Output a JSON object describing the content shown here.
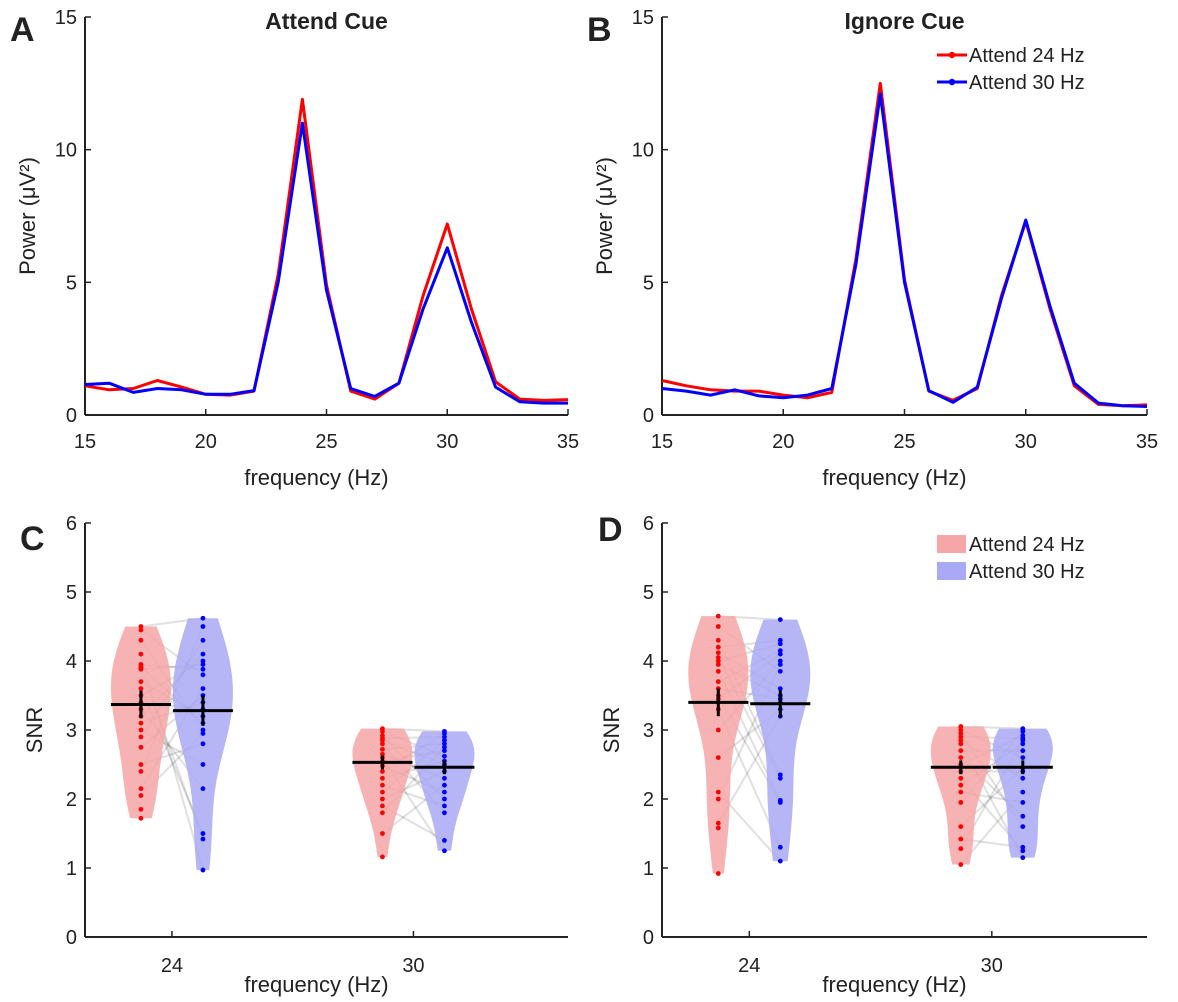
{
  "chart_data": [
    {
      "panel": "A",
      "type": "line",
      "title": "Attend Cue",
      "xlabel": "frequency (Hz)",
      "ylabel": "Power (μV²)",
      "xlim": [
        15,
        35
      ],
      "ylim": [
        0,
        15
      ],
      "xticks": [
        15,
        20,
        25,
        30,
        35
      ],
      "yticks": [
        0,
        5,
        10,
        15
      ],
      "x": [
        15,
        16,
        17,
        18,
        19,
        20,
        21,
        22,
        23,
        24,
        25,
        26,
        27,
        28,
        29,
        30,
        31,
        32,
        33,
        34,
        35
      ],
      "series": [
        {
          "name": "Attend 24 Hz",
          "color": "#ff0000",
          "values": [
            1.1,
            0.95,
            1.0,
            1.3,
            1.05,
            0.78,
            0.75,
            0.9,
            5.3,
            11.9,
            4.9,
            0.9,
            0.6,
            1.2,
            4.5,
            7.2,
            4.0,
            1.25,
            0.6,
            0.55,
            0.58
          ]
        },
        {
          "name": "Attend 30 Hz",
          "color": "#0000ff",
          "values": [
            1.15,
            1.2,
            0.85,
            1.0,
            0.95,
            0.78,
            0.78,
            0.92,
            5.0,
            11.0,
            4.7,
            1.0,
            0.7,
            1.2,
            4.0,
            6.3,
            3.5,
            1.05,
            0.5,
            0.45,
            0.45
          ]
        }
      ]
    },
    {
      "panel": "B",
      "type": "line",
      "title": "Ignore Cue",
      "xlabel": "frequency (Hz)",
      "ylabel": "Power (μV²)",
      "xlim": [
        15,
        35
      ],
      "ylim": [
        0,
        15
      ],
      "xticks": [
        15,
        20,
        25,
        30,
        35
      ],
      "yticks": [
        0,
        5,
        10,
        15
      ],
      "legend": "top-right",
      "x": [
        15,
        16,
        17,
        18,
        19,
        20,
        21,
        22,
        23,
        24,
        25,
        26,
        27,
        28,
        29,
        30,
        31,
        32,
        33,
        34,
        35
      ],
      "series": [
        {
          "name": "Attend 24 Hz",
          "color": "#ff0000",
          "values": [
            1.3,
            1.1,
            0.95,
            0.9,
            0.9,
            0.75,
            0.65,
            0.85,
            5.9,
            12.5,
            5.1,
            0.9,
            0.55,
            1.0,
            4.5,
            7.3,
            4.0,
            1.1,
            0.4,
            0.35,
            0.38
          ]
        },
        {
          "name": "Attend 30 Hz",
          "color": "#0000ff",
          "values": [
            1.0,
            0.9,
            0.75,
            0.95,
            0.72,
            0.65,
            0.75,
            1.0,
            5.7,
            12.1,
            5.0,
            0.92,
            0.48,
            1.05,
            4.4,
            7.35,
            4.1,
            1.2,
            0.45,
            0.35,
            0.32
          ]
        }
      ]
    },
    {
      "panel": "C",
      "type": "violin",
      "xlabel": "frequency (Hz)",
      "ylabel": "SNR",
      "ylim": [
        0,
        6
      ],
      "yticks": [
        0,
        1,
        2,
        3,
        4,
        5,
        6
      ],
      "categories": [
        "24",
        "30"
      ],
      "series": [
        {
          "name": "Attend 24 Hz",
          "color": "#ff0000",
          "shade": "#f6a6a6",
          "groups": [
            {
              "category": "24",
              "mean": 3.37,
              "sem": 0.2,
              "points": [
                4.5,
                4.45,
                4.3,
                4.1,
                3.95,
                3.92,
                3.9,
                3.88,
                3.7,
                3.6,
                3.5,
                3.4,
                3.3,
                3.2,
                3.1,
                3.0,
                2.9,
                2.75,
                2.5,
                2.4,
                2.15,
                2.05,
                1.85,
                1.72
              ]
            },
            {
              "category": "30",
              "mean": 2.53,
              "sem": 0.1,
              "points": [
                3.02,
                2.98,
                2.92,
                2.88,
                2.85,
                2.8,
                2.72,
                2.65,
                2.6,
                2.55,
                2.48,
                2.4,
                2.3,
                2.2,
                2.1,
                2.0,
                1.9,
                1.8,
                1.5,
                1.16
              ]
            }
          ]
        },
        {
          "name": "Attend 30 Hz",
          "color": "#0000ff",
          "shade": "#a9a9f6",
          "groups": [
            {
              "category": "24",
              "mean": 3.28,
              "sem": 0.22,
              "points": [
                4.62,
                4.5,
                4.3,
                4.1,
                4.0,
                3.95,
                3.88,
                3.8,
                3.6,
                3.5,
                3.4,
                3.3,
                3.2,
                3.1,
                3.0,
                2.95,
                2.8,
                2.5,
                2.15,
                1.5,
                1.42,
                0.97
              ]
            },
            {
              "category": "30",
              "mean": 2.46,
              "sem": 0.1,
              "points": [
                2.98,
                2.95,
                2.9,
                2.85,
                2.8,
                2.75,
                2.7,
                2.62,
                2.55,
                2.5,
                2.4,
                2.3,
                2.2,
                2.1,
                2.0,
                1.9,
                1.8,
                1.4,
                1.25
              ]
            }
          ]
        }
      ]
    },
    {
      "panel": "D",
      "type": "violin",
      "xlabel": "frequency (Hz)",
      "ylabel": "SNR",
      "ylim": [
        0,
        6
      ],
      "yticks": [
        0,
        1,
        2,
        3,
        4,
        5,
        6
      ],
      "categories": [
        "24",
        "30"
      ],
      "legend": "top-right",
      "series": [
        {
          "name": "Attend 24 Hz",
          "color": "#ff0000",
          "shade": "#f6a6a6",
          "groups": [
            {
              "category": "24",
              "mean": 3.4,
              "sem": 0.2,
              "points": [
                4.65,
                4.5,
                4.3,
                4.2,
                4.12,
                4.05,
                4.0,
                3.95,
                3.85,
                3.7,
                3.6,
                3.5,
                3.45,
                3.4,
                3.3,
                3.0,
                2.6,
                2.1,
                2.0,
                1.65,
                1.58,
                0.92
              ]
            },
            {
              "category": "30",
              "mean": 2.46,
              "sem": 0.1,
              "points": [
                3.05,
                3.0,
                2.95,
                2.9,
                2.85,
                2.8,
                2.7,
                2.6,
                2.5,
                2.4,
                2.3,
                2.2,
                2.1,
                1.95,
                1.6,
                1.42,
                1.28,
                1.05
              ]
            }
          ]
        },
        {
          "name": "Attend 30 Hz",
          "color": "#0000ff",
          "shade": "#a9a9f6",
          "groups": [
            {
              "category": "24",
              "mean": 3.38,
              "sem": 0.2,
              "points": [
                4.6,
                4.3,
                4.25,
                4.15,
                4.1,
                4.0,
                3.95,
                3.85,
                3.6,
                3.5,
                3.45,
                3.4,
                3.3,
                3.2,
                2.35,
                2.3,
                1.98,
                1.95,
                1.3,
                1.1
              ]
            },
            {
              "category": "30",
              "mean": 2.46,
              "sem": 0.1,
              "points": [
                3.02,
                2.98,
                2.92,
                2.88,
                2.85,
                2.8,
                2.7,
                2.6,
                2.45,
                2.4,
                2.3,
                2.1,
                1.95,
                1.75,
                1.6,
                1.3,
                1.25,
                1.15
              ]
            }
          ]
        }
      ]
    }
  ]
}
